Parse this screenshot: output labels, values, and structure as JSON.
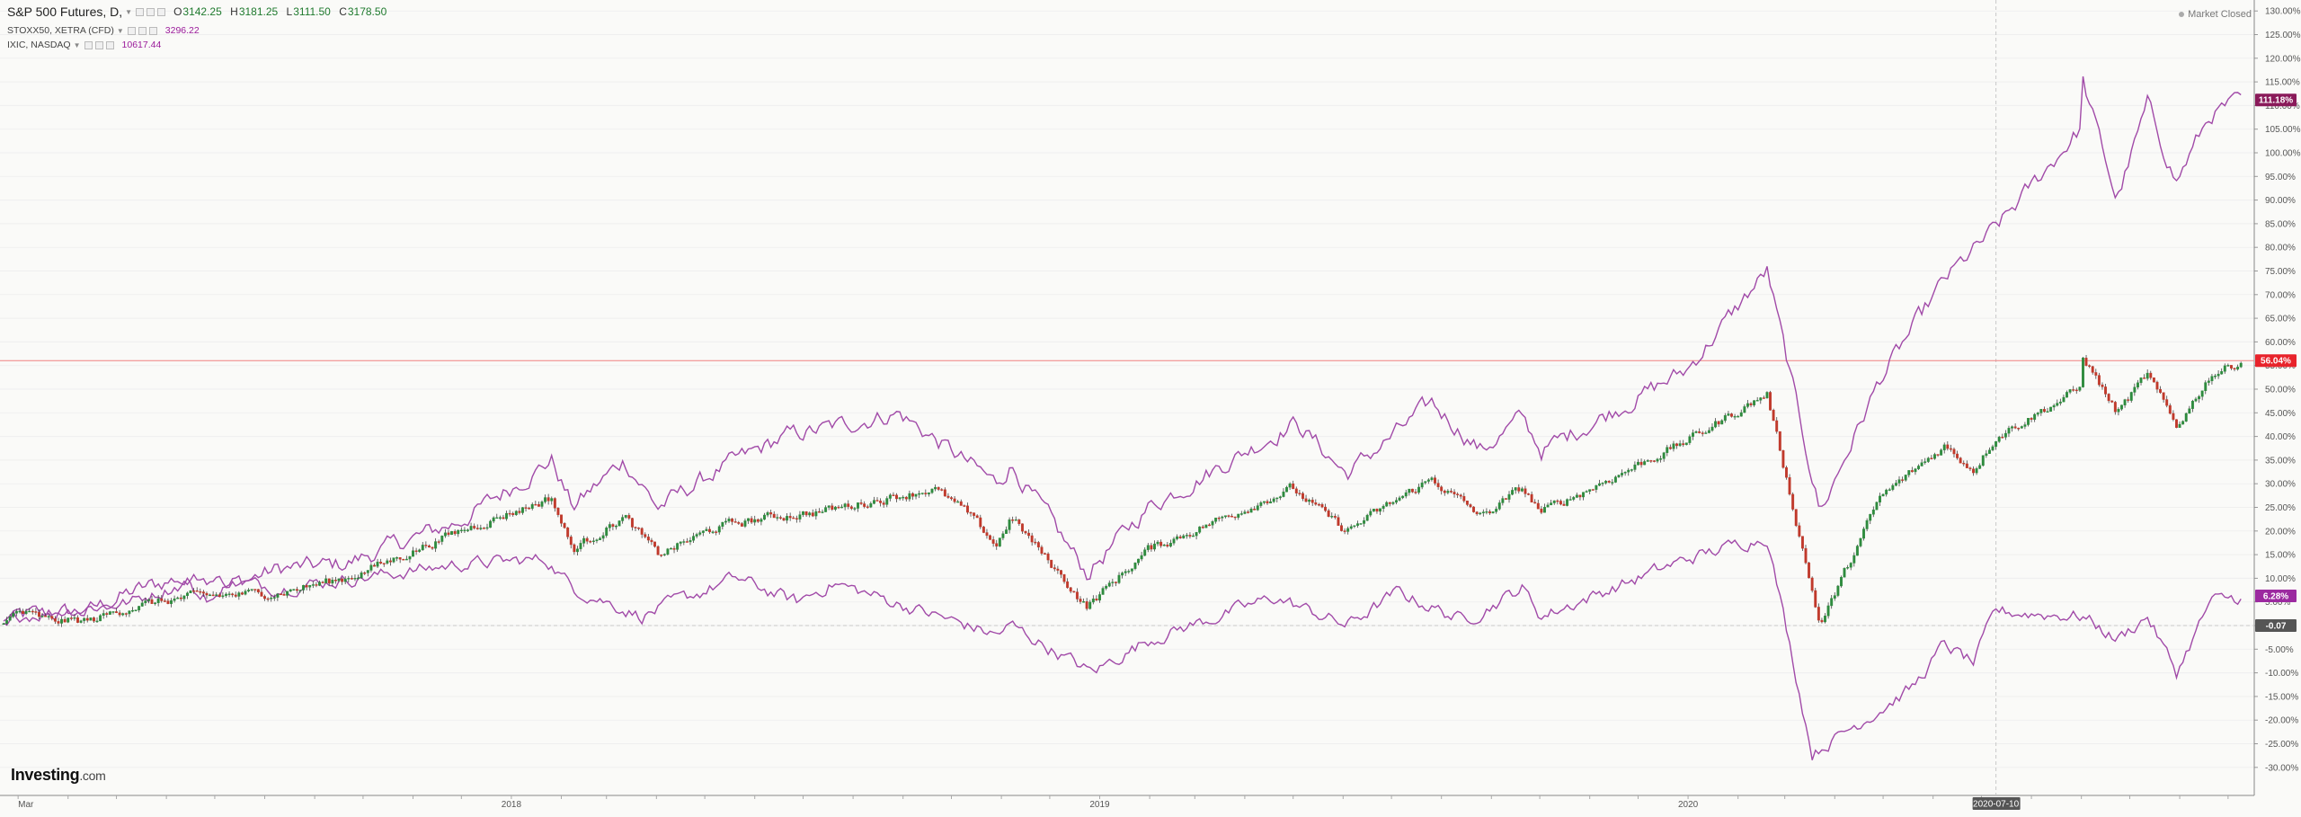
{
  "legend": {
    "main_symbol": "S&P 500 Futures, D,",
    "ohlc": [
      {
        "key": "O",
        "value": "3142.25"
      },
      {
        "key": "H",
        "value": "3181.25"
      },
      {
        "key": "L",
        "value": "3111.50"
      },
      {
        "key": "C",
        "value": "3178.50"
      }
    ],
    "overlays": [
      {
        "symbol": "STOXX50, XETRA (CFD)",
        "value": "3296.22"
      },
      {
        "symbol": "IXIC, NASDAQ",
        "value": "10617.44"
      }
    ]
  },
  "status": "Market Closed",
  "logo": {
    "brand": "Investing",
    "domain": ".com"
  },
  "crosshair_date_label": "2020-07-10",
  "price_tags": {
    "ixic": "111.18%",
    "main": "56.04%",
    "stoxx": "6.28%",
    "zero": "-0.07"
  },
  "colors": {
    "up": "#2e8b3e",
    "down": "#c0392b",
    "overlay": "#a14aa8",
    "ixic_tag": "#8a1a5a",
    "stoxx_tag": "#9c2aa0",
    "main_tag": "#e8232b",
    "zero_tag": "#555555"
  },
  "chart_data": {
    "type": "line",
    "title": "S&P 500 Futures, D,",
    "xlabel": "",
    "ylabel": "",
    "x_tick_labels": [
      "Mar",
      "2018",
      "2019",
      "2020",
      "2020-07-10"
    ],
    "y_axis_unit": "%",
    "ylim": [
      -33,
      131
    ],
    "y_ticks": [
      -30,
      -25,
      -20,
      -15,
      -10,
      -5,
      0,
      5,
      10,
      15,
      20,
      25,
      30,
      35,
      40,
      45,
      50,
      55,
      60,
      65,
      70,
      75,
      80,
      85,
      90,
      95,
      100,
      105,
      110,
      115,
      120,
      125,
      130
    ],
    "y_tick_labels": [
      "-30.00%",
      "-25.00%",
      "-20.00%",
      "-15.00%",
      "-10.00%",
      "-5.00%",
      "",
      "5.00%",
      "10.00%",
      "15.00%",
      "20.00%",
      "25.00%",
      "30.00%",
      "35.00%",
      "40.00%",
      "45.00%",
      "50.00%",
      "55.00%",
      "60.00%",
      "65.00%",
      "70.00%",
      "75.00%",
      "80.00%",
      "85.00%",
      "90.00%",
      "95.00%",
      "100.00%",
      "105.00%",
      "110.00%",
      "115.00%",
      "120.00%",
      "125.00%",
      "130.00%"
    ],
    "series": [
      {
        "name": "S&P 500 Futures, D,",
        "style": "candles",
        "points": [
          [
            "2017-02-20",
            0
          ],
          [
            "2017-03-01",
            3
          ],
          [
            "2017-03-20",
            1
          ],
          [
            "2017-04-15",
            1
          ],
          [
            "2017-05-10",
            4
          ],
          [
            "2017-06-15",
            6
          ],
          [
            "2017-08-10",
            7
          ],
          [
            "2017-09-20",
            10
          ],
          [
            "2017-10-20",
            14
          ],
          [
            "2017-11-30",
            20
          ],
          [
            "2018-01-26",
            27
          ],
          [
            "2018-02-08",
            16
          ],
          [
            "2018-03-12",
            23
          ],
          [
            "2018-04-02",
            15
          ],
          [
            "2018-05-10",
            21
          ],
          [
            "2018-06-12",
            23
          ],
          [
            "2018-07-10",
            24
          ],
          [
            "2018-09-20",
            29
          ],
          [
            "2018-10-10",
            24
          ],
          [
            "2018-10-29",
            17
          ],
          [
            "2018-11-07",
            23
          ],
          [
            "2018-12-24",
            4
          ],
          [
            "2019-01-31",
            16
          ],
          [
            "2019-04-30",
            29
          ],
          [
            "2019-06-03",
            20
          ],
          [
            "2019-07-26",
            31
          ],
          [
            "2019-08-26",
            23
          ],
          [
            "2019-09-20",
            29
          ],
          [
            "2019-10-02",
            24
          ],
          [
            "2019-12-31",
            39
          ],
          [
            "2020-02-19",
            49
          ],
          [
            "2020-03-23",
            0
          ],
          [
            "2020-04-29",
            27
          ],
          [
            "2020-06-08",
            38
          ],
          [
            "2020-06-26",
            33
          ],
          [
            "2020-07-10",
            40
          ],
          [
            "2020-08-31",
            50
          ],
          [
            "2020-09-02",
            57
          ],
          [
            "2020-09-23",
            45
          ],
          [
            "2020-10-12",
            53
          ],
          [
            "2020-10-30",
            42
          ],
          [
            "2020-11-20",
            53
          ],
          [
            "2020-12-10",
            56
          ]
        ]
      },
      {
        "name": "IXIC, NASDAQ",
        "style": "line",
        "points": [
          [
            "2017-02-20",
            0
          ],
          [
            "2017-03-01",
            2
          ],
          [
            "2017-04-13",
            3
          ],
          [
            "2017-05-10",
            7
          ],
          [
            "2017-06-08",
            10
          ],
          [
            "2017-06-26",
            7
          ],
          [
            "2017-08-10",
            12
          ],
          [
            "2017-09-20",
            13
          ],
          [
            "2017-10-20",
            17
          ],
          [
            "2017-11-30",
            22
          ],
          [
            "2018-01-26",
            35
          ],
          [
            "2018-02-08",
            25
          ],
          [
            "2018-03-12",
            35
          ],
          [
            "2018-04-02",
            25
          ],
          [
            "2018-05-10",
            33
          ],
          [
            "2018-06-20",
            40
          ],
          [
            "2018-07-20",
            42
          ],
          [
            "2018-08-29",
            45
          ],
          [
            "2018-10-29",
            30
          ],
          [
            "2018-11-07",
            34
          ],
          [
            "2018-12-24",
            11
          ],
          [
            "2019-01-31",
            25
          ],
          [
            "2019-05-03",
            43
          ],
          [
            "2019-06-03",
            32
          ],
          [
            "2019-07-26",
            47
          ],
          [
            "2019-08-26",
            37
          ],
          [
            "2019-09-20",
            44
          ],
          [
            "2019-10-02",
            37
          ],
          [
            "2019-12-31",
            54
          ],
          [
            "2020-02-19",
            75
          ],
          [
            "2020-03-23",
            24
          ],
          [
            "2020-04-29",
            52
          ],
          [
            "2020-06-08",
            73
          ],
          [
            "2020-07-10",
            84
          ],
          [
            "2020-08-31",
            105
          ],
          [
            "2020-09-02",
            115
          ],
          [
            "2020-09-23",
            90
          ],
          [
            "2020-10-12",
            110
          ],
          [
            "2020-10-30",
            94
          ],
          [
            "2020-11-20",
            108
          ],
          [
            "2020-12-10",
            111
          ]
        ]
      },
      {
        "name": "STOXX50, XETRA (CFD)",
        "style": "line",
        "points": [
          [
            "2017-02-20",
            0
          ],
          [
            "2017-03-01",
            2
          ],
          [
            "2017-05-10",
            5
          ],
          [
            "2017-06-20",
            10
          ],
          [
            "2017-08-10",
            8
          ],
          [
            "2017-10-20",
            11
          ],
          [
            "2017-11-30",
            13
          ],
          [
            "2018-01-23",
            14
          ],
          [
            "2018-02-08",
            8
          ],
          [
            "2018-03-23",
            2
          ],
          [
            "2018-05-20",
            10
          ],
          [
            "2018-06-27",
            5
          ],
          [
            "2018-07-20",
            9
          ],
          [
            "2018-10-29",
            -2
          ],
          [
            "2018-11-07",
            0
          ],
          [
            "2018-12-27",
            -10
          ],
          [
            "2019-01-31",
            -3
          ],
          [
            "2019-04-20",
            6
          ],
          [
            "2019-06-03",
            0
          ],
          [
            "2019-07-05",
            7
          ],
          [
            "2019-08-15",
            1
          ],
          [
            "2019-09-20",
            8
          ],
          [
            "2019-10-02",
            2
          ],
          [
            "2019-12-31",
            14
          ],
          [
            "2020-02-19",
            19
          ],
          [
            "2020-03-18",
            -27
          ],
          [
            "2020-05-20",
            -13
          ],
          [
            "2020-06-08",
            -4
          ],
          [
            "2020-06-26",
            -8
          ],
          [
            "2020-07-10",
            3
          ],
          [
            "2020-09-02",
            2
          ],
          [
            "2020-09-23",
            -3
          ],
          [
            "2020-10-12",
            2
          ],
          [
            "2020-10-30",
            -10
          ],
          [
            "2020-11-20",
            5
          ],
          [
            "2020-12-10",
            6
          ]
        ]
      }
    ],
    "grid": true,
    "legend_position": "top-left"
  }
}
